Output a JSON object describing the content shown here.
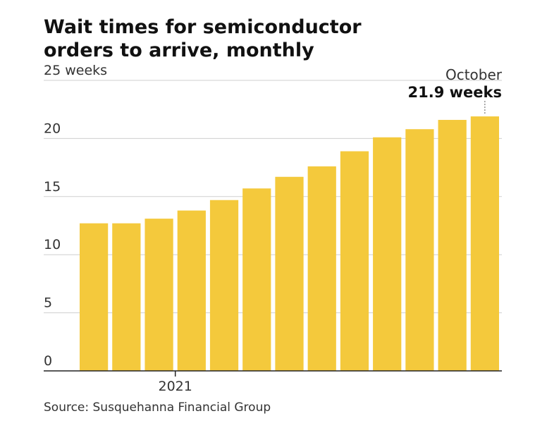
{
  "title": [
    "Wait times for semiconductor",
    "orders to arrive, monthly"
  ],
  "source": "Source: Susquehanna Financial Group",
  "colors": {
    "bar": "#f4c93c",
    "grid": "#cfcfcf",
    "text": "#333333",
    "axis": "#222222"
  },
  "chart_data": {
    "type": "bar",
    "title": "Wait times for semiconductor orders to arrive, monthly",
    "ylabel": "",
    "ylim": [
      0,
      25
    ],
    "yticks": [
      {
        "value": 0,
        "label": "0"
      },
      {
        "value": 5,
        "label": "5"
      },
      {
        "value": 10,
        "label": "10"
      },
      {
        "value": 15,
        "label": "15"
      },
      {
        "value": 20,
        "label": "20"
      },
      {
        "value": 25,
        "label": "25 weeks"
      }
    ],
    "x_tick_label": "2021",
    "x_tick_index": 3,
    "values": [
      12.7,
      12.7,
      13.1,
      13.8,
      14.7,
      15.7,
      16.7,
      17.6,
      18.9,
      20.1,
      20.8,
      21.6,
      21.9
    ],
    "annotation": {
      "index": 12,
      "month": "October",
      "value_label": "21.9 weeks"
    },
    "grid": true
  }
}
